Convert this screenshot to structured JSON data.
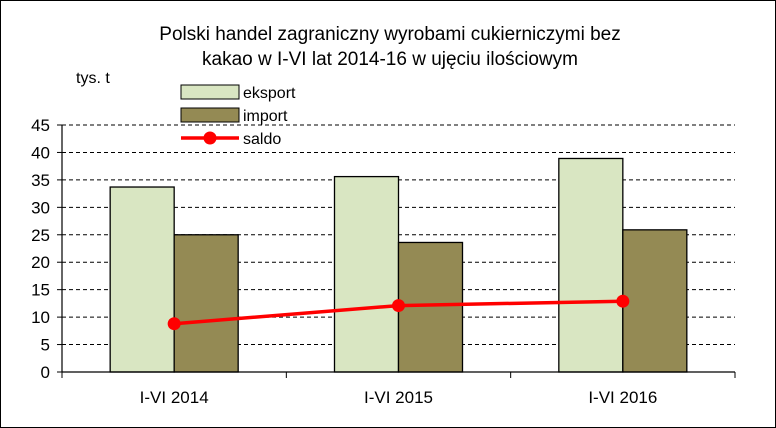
{
  "chart_data": {
    "type": "bar",
    "title_lines": [
      "Polski handel zagraniczny wyrobami cukierniczymi bez",
      "kakao w I-VI lat 2014-16 w ujęciu ilościowym"
    ],
    "ylabel": "tys. t",
    "categories": [
      "I-VI 2014",
      "I-VI 2015",
      "I-VI 2016"
    ],
    "ylim": [
      0,
      45
    ],
    "yticks": [
      0,
      5,
      10,
      15,
      20,
      25,
      30,
      35,
      40,
      45
    ],
    "grid": true,
    "legend_position": "top-left",
    "series": [
      {
        "name": "eksport",
        "kind": "bar",
        "values": [
          33.7,
          35.6,
          38.9
        ],
        "color": "#d9e6c2"
      },
      {
        "name": "import",
        "kind": "bar",
        "values": [
          25.0,
          23.6,
          25.9
        ],
        "color": "#948a54"
      },
      {
        "name": "saldo",
        "kind": "line",
        "values": [
          8.8,
          12.1,
          12.9
        ],
        "color": "#ff0000"
      }
    ]
  }
}
